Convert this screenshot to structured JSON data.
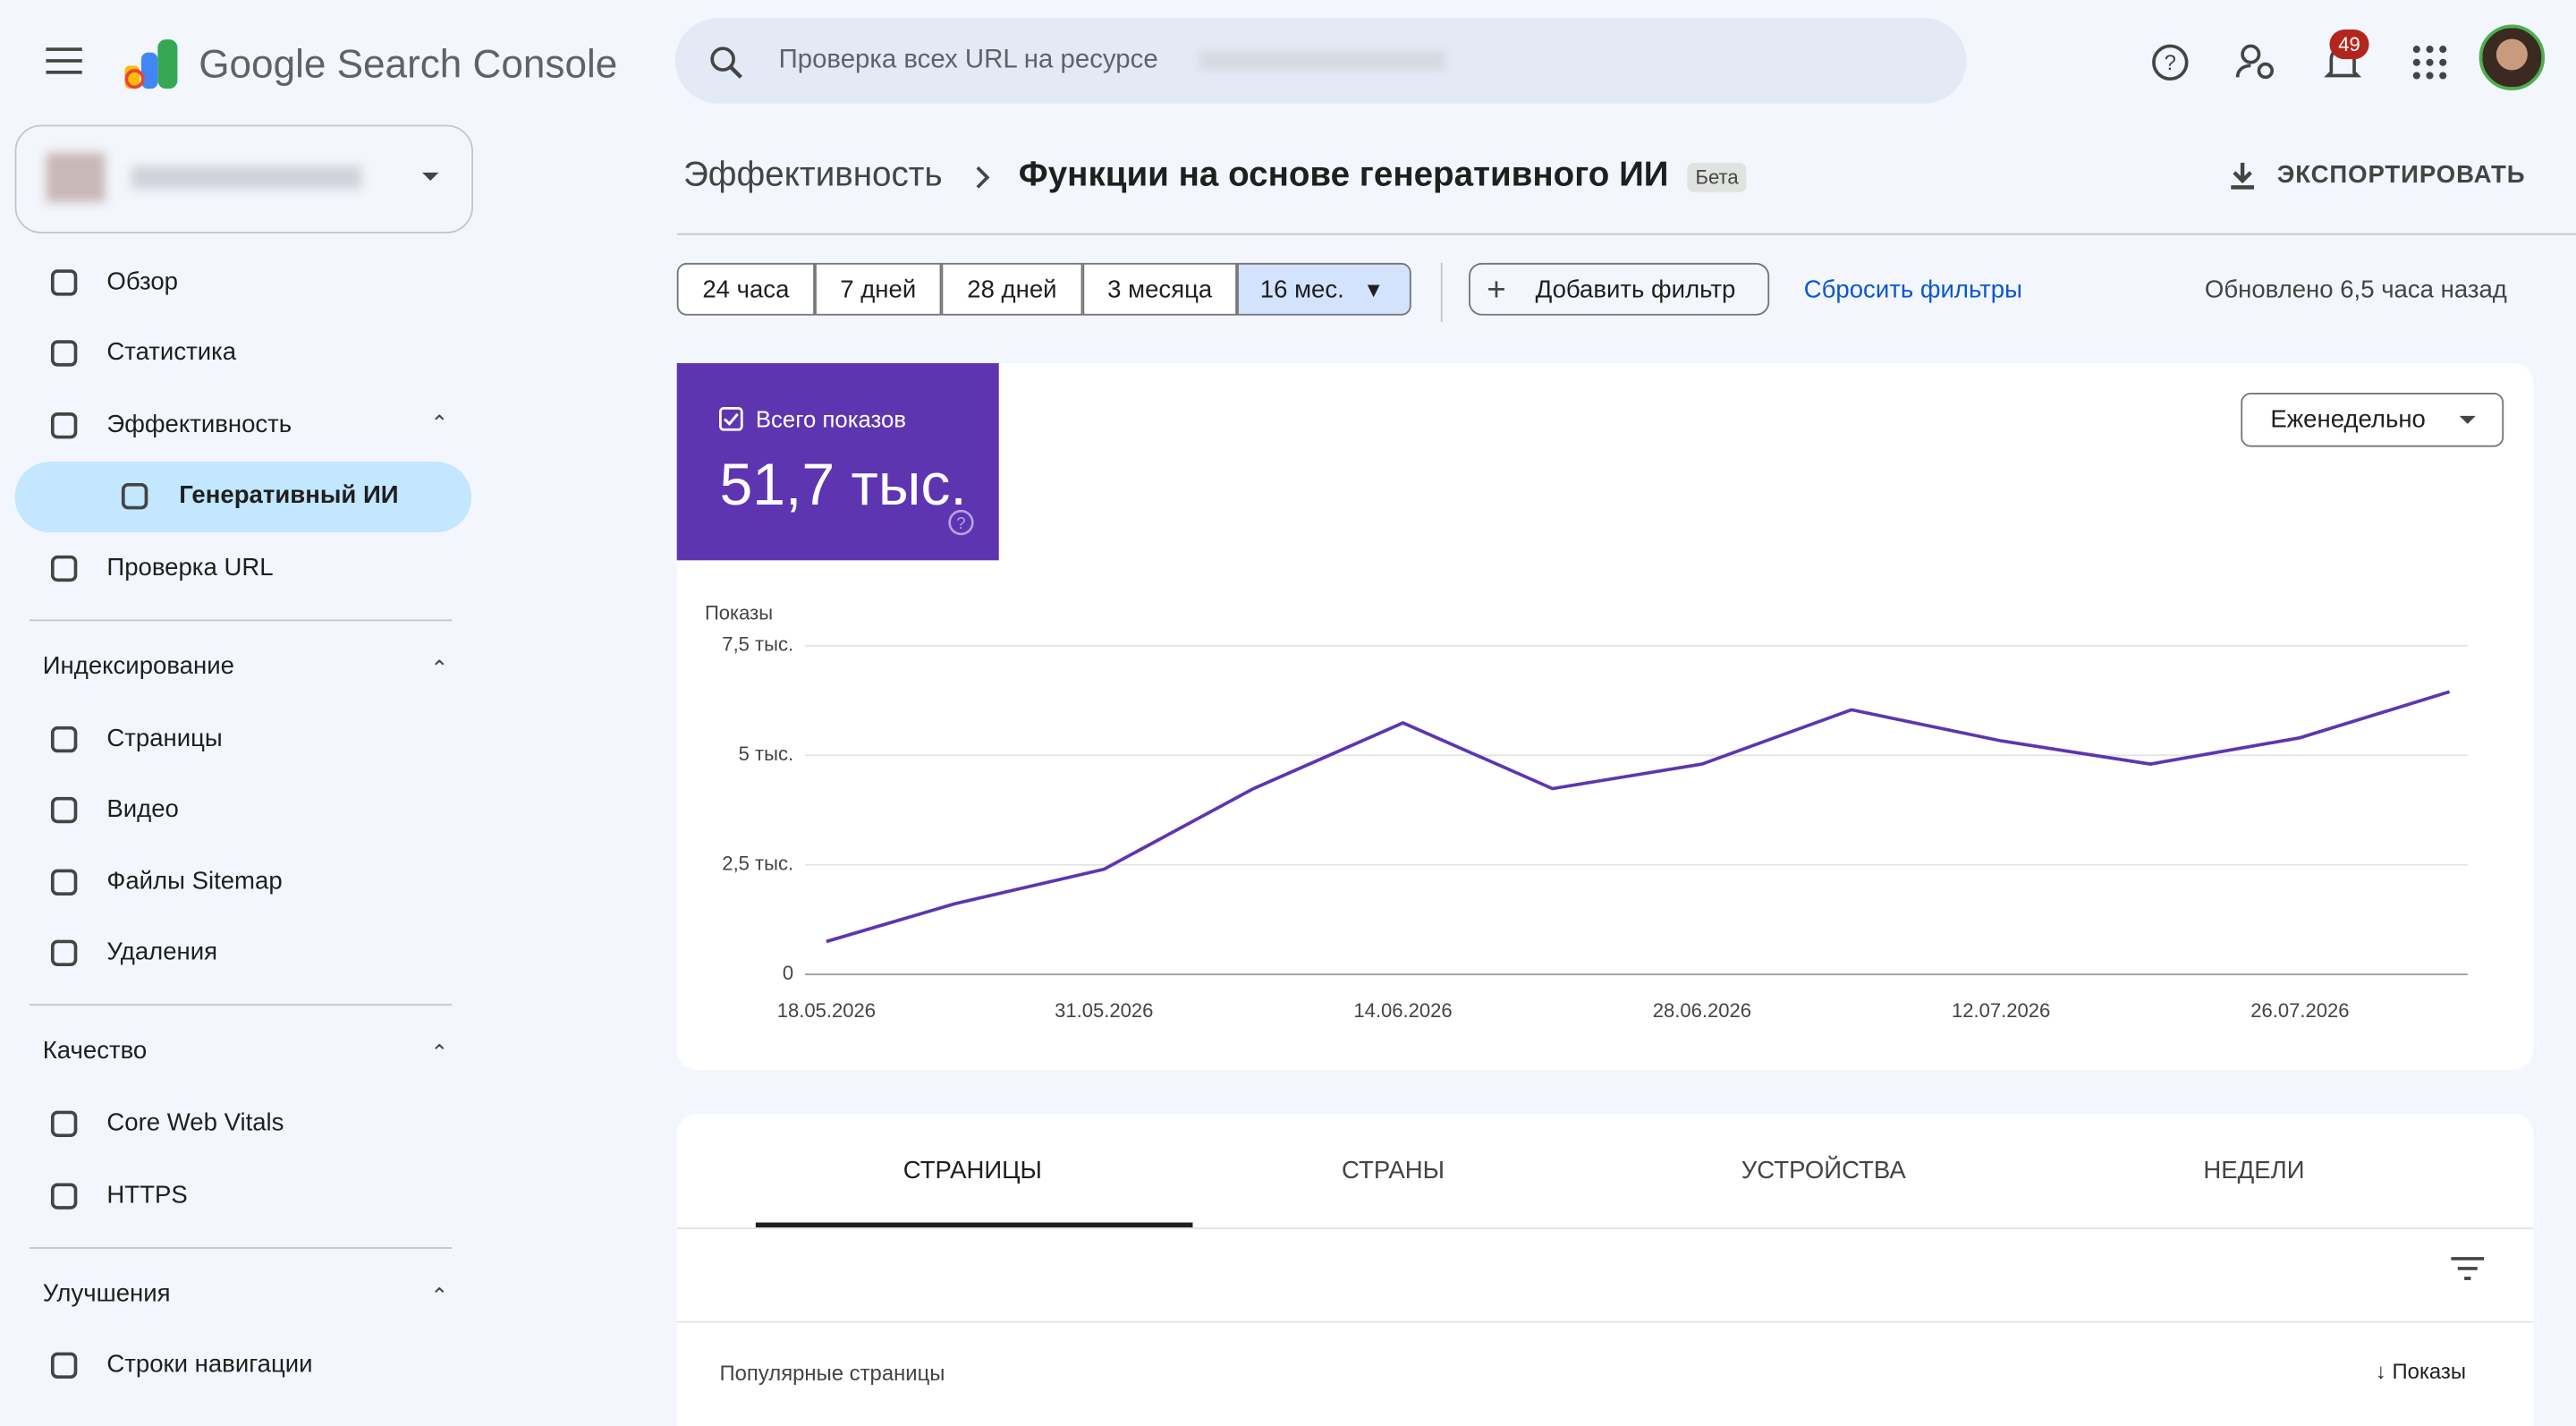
{
  "header": {
    "product": "Google Search Console",
    "search_placeholder": "Проверка всех URL на ресурсе",
    "notifications": "49"
  },
  "breadcrumb": {
    "parent": "Эффективность",
    "current": "Функции на основе генеративного ИИ",
    "badge": "Бета",
    "export": "ЭКСПОРТИРОВАТЬ"
  },
  "sidebar": {
    "items": [
      "Обзор",
      "Статистика",
      "Эффективность",
      "Генеративный ИИ",
      "Проверка URL"
    ],
    "sections": [
      {
        "title": "Индексирование",
        "items": [
          "Страницы",
          "Видео",
          "Файлы Sitemap",
          "Удаления"
        ]
      },
      {
        "title": "Качество",
        "items": [
          "Core Web Vitals",
          "HTTPS"
        ]
      },
      {
        "title": "Улучшения",
        "items": [
          "Строки навигации"
        ]
      }
    ]
  },
  "filters": {
    "ranges": [
      "24 часа",
      "7 дней",
      "28 дней",
      "3 месяца",
      "16 мес."
    ],
    "add": "Добавить фильтр",
    "reset": "Сбросить фильтры",
    "updated": "Обновлено 6,5 часа назад"
  },
  "metric": {
    "label": "Всего показов",
    "value": "51,7 тыс."
  },
  "granularity": "Еженедельно",
  "chart_data": {
    "type": "line",
    "y_label": "Показы",
    "x": [
      "18.05.2026",
      "24.05.2026",
      "31.05.2026",
      "07.06.2026",
      "14.06.2026",
      "21.06.2026",
      "28.06.2026",
      "05.07.2026",
      "12.07.2026",
      "19.07.2026",
      "26.07.2026",
      "02.08.2026"
    ],
    "series": [
      {
        "name": "Показы",
        "color": "#5e35b1",
        "values": [
          750,
          1610,
          2400,
          4240,
          5740,
          4240,
          4800,
          6040,
          5330,
          4800,
          5400,
          6450
        ]
      }
    ],
    "xlim": [
      "17.05.2026",
      "03.08.2026"
    ],
    "xticks": [
      "18.05.2026",
      "31.05.2026",
      "14.06.2026",
      "28.06.2026",
      "12.07.2026",
      "26.07.2026"
    ],
    "ylim": [
      0,
      7500
    ],
    "yticks": [
      0,
      {
        "value": 2500,
        "label": "2,5 тыс."
      },
      {
        "value": 5000,
        "label": "5 тыс."
      },
      {
        "value": 7500,
        "label": "7,5 тыс."
      }
    ],
    "grid": true
  },
  "tabs": [
    "СТРАНИЦЫ",
    "СТРАНЫ",
    "УСТРОЙСТВА",
    "НЕДЕЛИ"
  ],
  "table": {
    "title": "Популярные страницы",
    "sort_column": "Показы"
  }
}
